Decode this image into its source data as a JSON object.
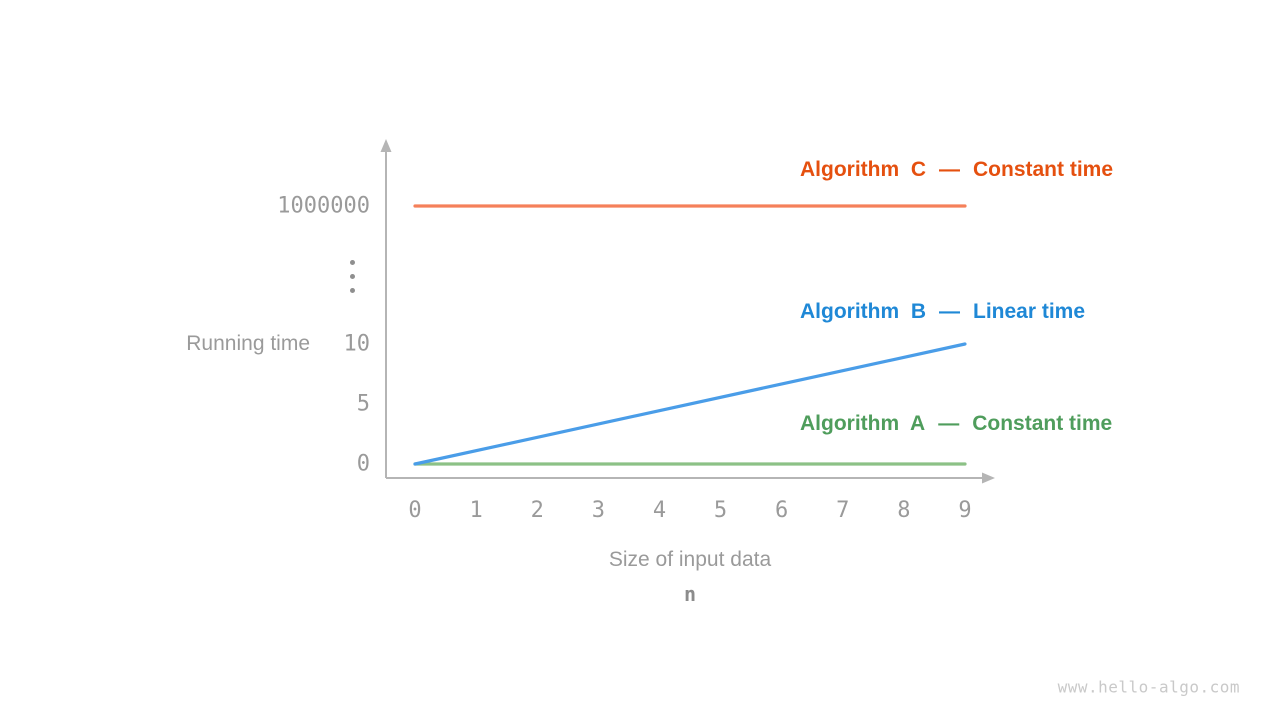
{
  "figure": {
    "watermark": "www.hello-algo.com"
  },
  "y_axis": {
    "title": "Running time",
    "ticks": [
      {
        "label": "1000000",
        "value": 1000000
      },
      {
        "label": "10",
        "value": 10
      },
      {
        "label": "5",
        "value": 5
      },
      {
        "label": "0",
        "value": 0
      }
    ],
    "break_symbol": "vertical-ellipsis"
  },
  "x_axis": {
    "title": "Size of input data",
    "symbol": "n",
    "ticks": [
      "0",
      "1",
      "2",
      "3",
      "4",
      "5",
      "6",
      "7",
      "8",
      "9"
    ]
  },
  "legend": {
    "items": [
      {
        "name": "Algorithm  C",
        "separator": "—",
        "time": "Constant time",
        "color": "#e5500f"
      },
      {
        "name": "Algorithm  B",
        "separator": "—",
        "time": "Linear time",
        "color": "#1f88d6"
      },
      {
        "name": "Algorithm  A",
        "separator": "—",
        "time": "Constant time",
        "color": "#4f9d5c"
      }
    ]
  },
  "chart_data": {
    "type": "line",
    "title": "",
    "xlabel": "Size of input data (n)",
    "ylabel": "Running time",
    "x_ticks": [
      0,
      1,
      2,
      3,
      4,
      5,
      6,
      7,
      8,
      9
    ],
    "y_ticks": [
      0,
      5,
      10,
      1000000
    ],
    "y_axis_break_between": [
      10,
      1000000
    ],
    "xlim": [
      0,
      9
    ],
    "grid": false,
    "legend_position": "right-inside",
    "series": [
      {
        "name": "Algorithm C",
        "complexity": "Constant time",
        "line_color": "#f5805a",
        "points": [
          [
            0,
            1000000
          ],
          [
            9,
            1000000
          ]
        ]
      },
      {
        "name": "Algorithm B",
        "complexity": "Linear time",
        "line_color": "#4a9de8",
        "points": [
          [
            0,
            0
          ],
          [
            9,
            10
          ]
        ]
      },
      {
        "name": "Algorithm A",
        "complexity": "Constant time",
        "line_color": "#8cc186",
        "points": [
          [
            0,
            0
          ],
          [
            9,
            0
          ]
        ]
      }
    ]
  }
}
